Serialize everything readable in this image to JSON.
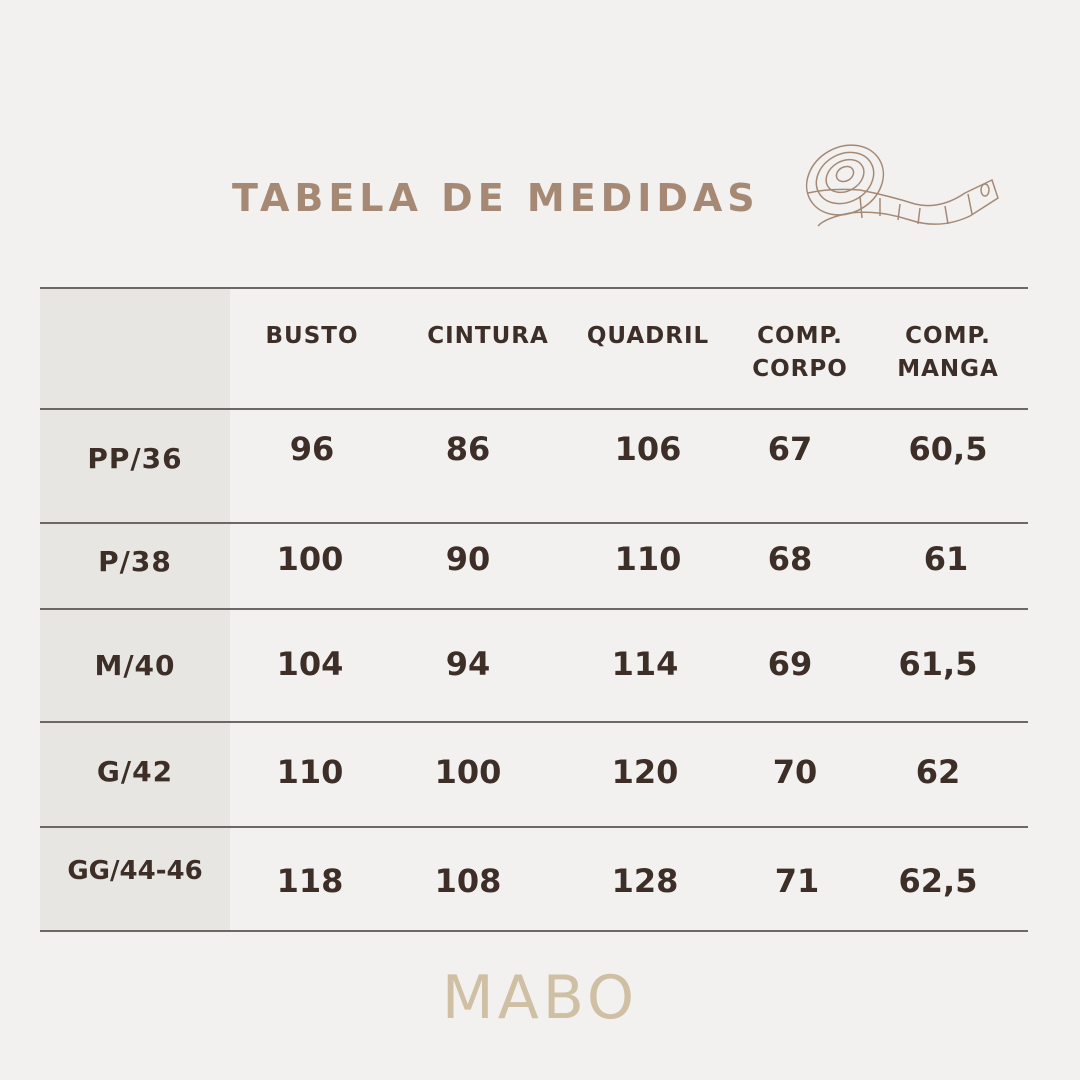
{
  "title": "TABELA DE MEDIDAS",
  "icon": "measuring-tape-icon",
  "colors": {
    "title": "#a58975",
    "text": "#3d2f28",
    "logo": "#cfbfa3",
    "background": "#f2f1ef",
    "label_column": "#e8e6e2"
  },
  "table": {
    "headers": [
      "BUSTO",
      "CINTURA",
      "QUADRIL",
      "COMP. CORPO",
      "COMP. MANGA"
    ],
    "rows": [
      {
        "size": "PP/36",
        "values": [
          "96",
          "86",
          "106",
          "67",
          "60,5"
        ]
      },
      {
        "size": "P/38",
        "values": [
          "100",
          "90",
          "110",
          "68",
          "61"
        ]
      },
      {
        "size": "M/40",
        "values": [
          "104",
          "94",
          "114",
          "69",
          "61,5"
        ]
      },
      {
        "size": "G/42",
        "values": [
          "110",
          "100",
          "120",
          "70",
          "62"
        ]
      },
      {
        "size": "GG/44-46",
        "values": [
          "118",
          "108",
          "128",
          "71",
          "62,5"
        ]
      }
    ]
  },
  "brand": "MABO"
}
